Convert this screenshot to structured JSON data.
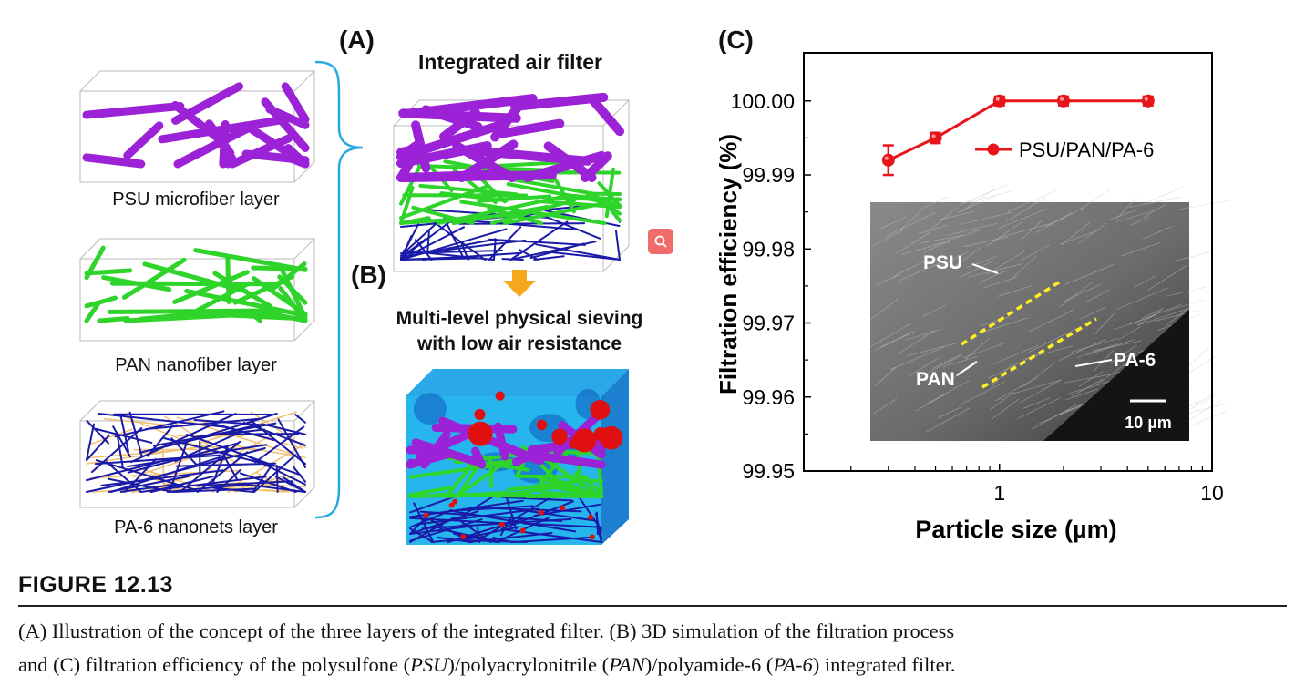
{
  "panel_a": {
    "label": "(A)",
    "title": "Integrated air filter",
    "layers": [
      {
        "label": "PSU microfiber layer",
        "color": "#9b22d6"
      },
      {
        "label": "PAN nanofiber layer",
        "color": "#2ed42a"
      },
      {
        "label": "PA-6 nanonets layer",
        "color": "#1a1aa8"
      }
    ],
    "brace_color": "#29a8e0",
    "arrow_color": "#f5a81c"
  },
  "panel_b": {
    "label": "(B)",
    "title_line1": "Multi-level physical sieving",
    "title_line2": "with low air resistance"
  },
  "panel_c": {
    "label": "(C)"
  },
  "zoom_button": {
    "icon": "magnifier-icon",
    "color": "#f26b6b"
  },
  "chart_data": {
    "type": "line",
    "xlabel": "Particle size (µm)",
    "ylabel": "Filtration efficiency (%)",
    "x_scale": "log",
    "xlim": [
      0.12,
      10
    ],
    "ylim": [
      99.95,
      100.0065
    ],
    "x_ticks": [
      1,
      10
    ],
    "x_tick_labels": [
      "1",
      "10"
    ],
    "y_ticks": [
      99.95,
      99.96,
      99.97,
      99.98,
      99.99,
      100.0
    ],
    "y_tick_labels": [
      "99.95",
      "99.96",
      "99.97",
      "99.98",
      "99.99",
      "100.00"
    ],
    "grid": false,
    "legend_position": "top-right",
    "series": [
      {
        "name": "PSU/PAN/PA-6",
        "color": "#e8141b",
        "x": [
          0.3,
          0.5,
          1,
          2,
          5
        ],
        "y": [
          99.992,
          99.995,
          100.0,
          100.0,
          100.0
        ],
        "error": [
          0.002,
          0.0007,
          0.0006,
          0.0006,
          0.0006
        ]
      }
    ],
    "inset": {
      "labels": [
        "PSU",
        "PAN",
        "PA-6"
      ],
      "scale_bar": "10 µm"
    }
  },
  "figure": {
    "number": "FIGURE 12.13",
    "caption_line1": "(A) Illustration of the concept of the three layers of the integrated filter. (B) 3D simulation of the filtration process",
    "caption_line2_pre": "and (C) filtration efficiency of the polysulfone (",
    "psu": "PSU",
    "mid1": ")/polyacrylonitrile (",
    "pan": "PAN",
    "mid2": ")/polyamide-6 (",
    "pa6": "PA-6",
    "post": ") integrated filter."
  }
}
